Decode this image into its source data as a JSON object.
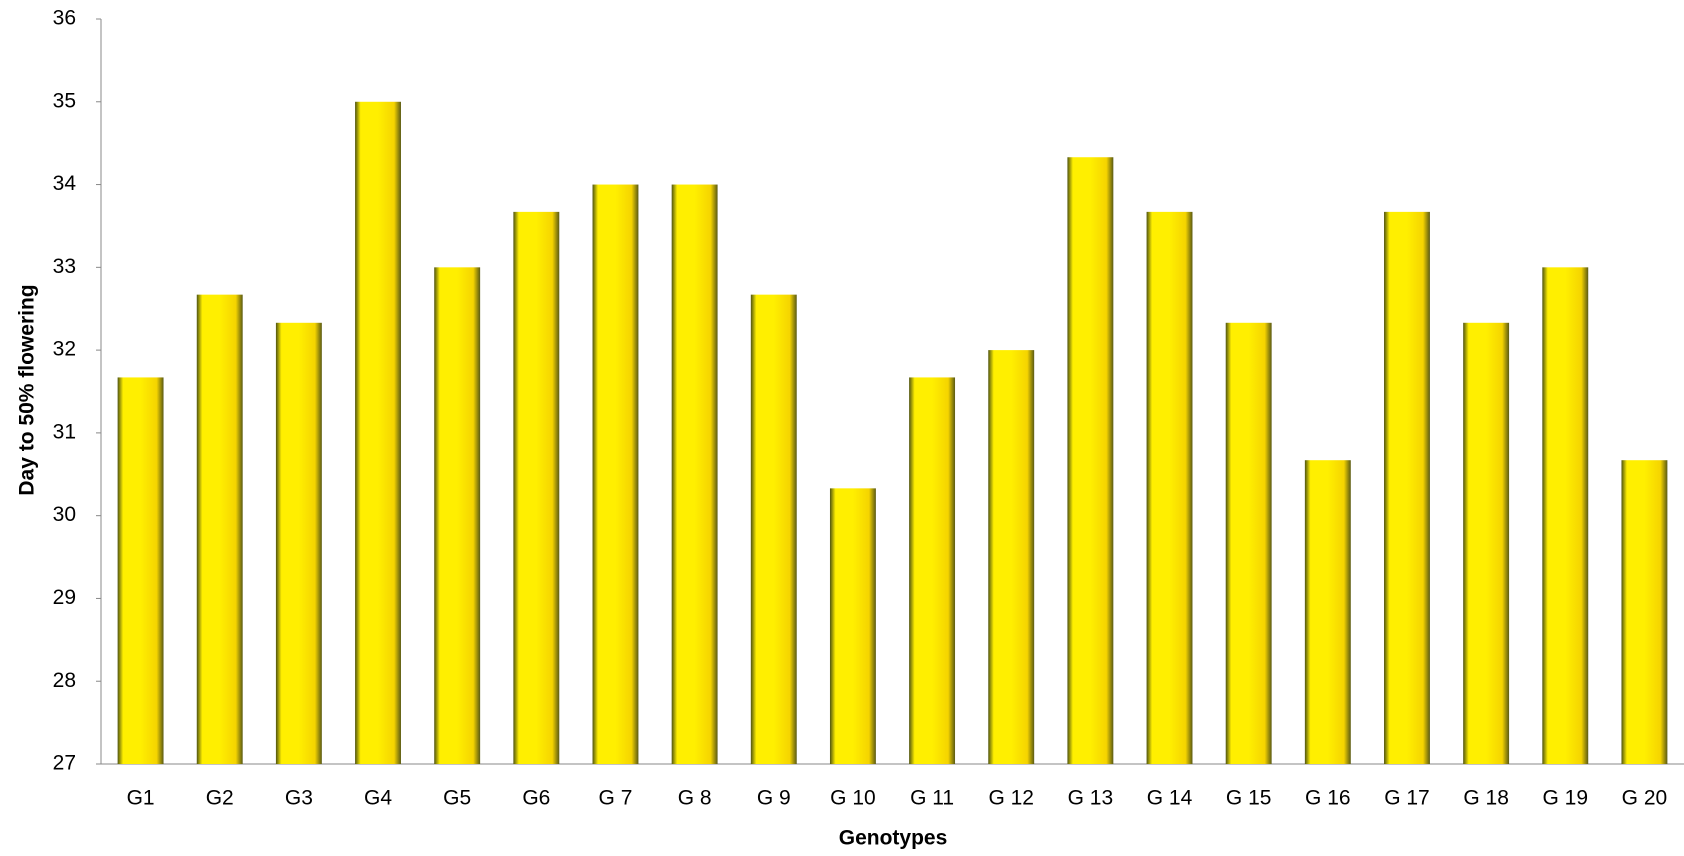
{
  "chart_data": {
    "type": "bar",
    "x_label": "Genotypes",
    "y_label": "Day to 50% flowering",
    "categories": [
      "G1",
      "G2",
      "G3",
      "G4",
      "G5",
      "G6",
      "G 7",
      "G 8",
      "G 9",
      "G 10",
      "G 11",
      "G 12",
      "G 13",
      "G 14",
      "G 15",
      "G 16",
      "G 17",
      "G 18",
      "G 19",
      "G 20"
    ],
    "values": [
      31.67,
      32.67,
      32.33,
      35,
      33,
      33.67,
      34,
      34,
      32.67,
      30.33,
      31.67,
      32,
      34.33,
      33.67,
      32.33,
      30.67,
      33.67,
      32.33,
      33,
      30.67
    ],
    "color": "#ffef00",
    "ylim": [
      27,
      36
    ],
    "yticks": [
      27,
      28,
      29,
      30,
      31,
      32,
      33,
      34,
      35,
      36
    ],
    "grid": false
  }
}
